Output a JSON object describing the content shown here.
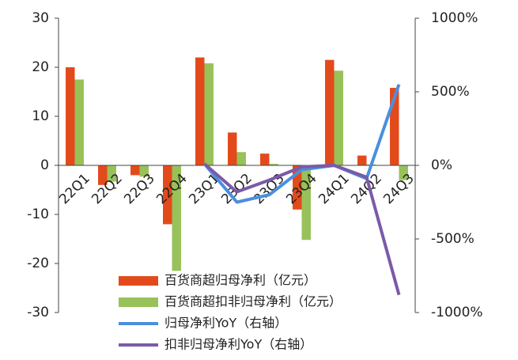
{
  "chart_data": {
    "type": "bar",
    "categories": [
      "22Q1",
      "22Q2",
      "22Q3",
      "22Q4",
      "23Q1",
      "23Q2",
      "23Q3",
      "23Q4",
      "24Q1",
      "24Q2",
      "24Q3"
    ],
    "series": [
      {
        "name": "百货商超归母净利（亿元）",
        "type": "bar",
        "color": "#e34a1b",
        "values": [
          20,
          -4,
          -2,
          -12,
          22,
          6.7,
          2.4,
          -9,
          21.5,
          2,
          15.8
        ]
      },
      {
        "name": "百货商超扣非归母净利（亿元）",
        "type": "bar",
        "color": "#98c15a",
        "values": [
          17.5,
          -3.3,
          -2.3,
          -21.5,
          20.8,
          2.7,
          0.3,
          -15.2,
          19.3,
          0.2,
          -3
        ]
      },
      {
        "name": "归母净利YoY（右轴）",
        "type": "line",
        "axis": "y2",
        "color": "#4a8fde",
        "values": [
          null,
          null,
          null,
          null,
          10,
          -250,
          -200,
          -30,
          0,
          -90,
          550
        ]
      },
      {
        "name": "扣非归母净利YoY（右轴）",
        "type": "line",
        "axis": "y2",
        "color": "#7a5aa8",
        "values": [
          null,
          null,
          null,
          null,
          10,
          -180,
          -100,
          -10,
          0,
          -80,
          -880
        ]
      }
    ],
    "ylim": [
      -30,
      30
    ],
    "yticks": [
      -30,
      -20,
      -10,
      0,
      10,
      20,
      30
    ],
    "y2lim": [
      -1000,
      1000
    ],
    "y2ticks": [
      {
        "value": -1000,
        "label": "-1000%"
      },
      {
        "value": -500,
        "label": "-500%"
      },
      {
        "value": 0,
        "label": "0%"
      },
      {
        "value": 500,
        "label": "500%"
      },
      {
        "value": 1000,
        "label": "1000%"
      }
    ]
  }
}
